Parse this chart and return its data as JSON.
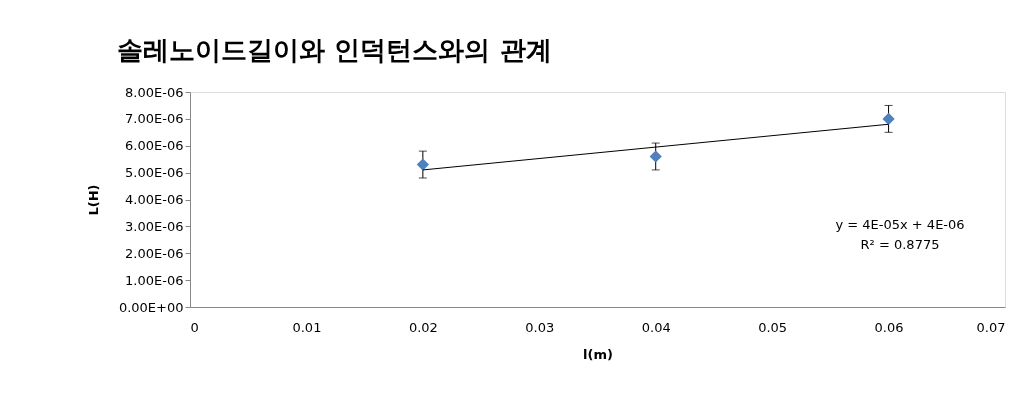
{
  "chart_data": {
    "type": "scatter",
    "title": "솔레노이드길이와 인덕턴스와의 관계",
    "xlabel": "l(m)",
    "ylabel": "L(H)",
    "x": [
      0.02,
      0.04,
      0.06
    ],
    "series": [
      {
        "color": "#4f81bd",
        "values": [
          5.3e-06,
          5.6e-06,
          7e-06
        ],
        "errors": [
          5e-07,
          5e-07,
          5e-07
        ]
      },
      {
        "type": "line",
        "color": "#000000",
        "x": [
          0.02,
          0.06
        ],
        "values": [
          5.1e-06,
          6.8e-06
        ],
        "line_style": "solid",
        "marker": "none"
      }
    ],
    "marker": "diamond",
    "xlim": [
      0,
      0.07
    ],
    "xticks": [
      0,
      0.01,
      0.02,
      0.03,
      0.04,
      0.05,
      0.06,
      0.07
    ],
    "ylim": [
      0,
      8e-06
    ],
    "yticks": [
      {
        "value": 0,
        "label": "0.00E+00"
      },
      {
        "value": 1e-06,
        "label": "1.00E-06"
      },
      {
        "value": 2e-06,
        "label": "2.00E-06"
      },
      {
        "value": 3e-06,
        "label": "3.00E-06"
      },
      {
        "value": 4e-06,
        "label": "4.00E-06"
      },
      {
        "value": 5e-06,
        "label": "5.00E-06"
      },
      {
        "value": 6e-06,
        "label": "6.00E-06"
      },
      {
        "value": 7e-06,
        "label": "7.00E-06"
      },
      {
        "value": 8e-06,
        "label": "8.00E-06"
      }
    ],
    "annotations": [
      "y = 4E-05x + 4E-06",
      "R² = 0.8775"
    ],
    "grid": false,
    "legend": false
  }
}
